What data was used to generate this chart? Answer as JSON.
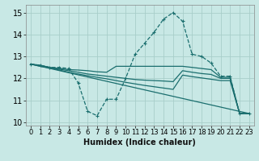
{
  "bg_color": "#c8e8e5",
  "grid_color": "#a8ceca",
  "line_color": "#1a6e6e",
  "xlabel": "Humidex (Indice chaleur)",
  "xlim": [
    -0.5,
    23.5
  ],
  "ylim": [
    9.85,
    15.35
  ],
  "yticks": [
    10,
    11,
    12,
    13,
    14,
    15
  ],
  "xticks": [
    0,
    1,
    2,
    3,
    4,
    5,
    6,
    7,
    8,
    9,
    10,
    11,
    12,
    13,
    14,
    15,
    16,
    17,
    18,
    19,
    20,
    21,
    22,
    23
  ],
  "curve_main": {
    "x": [
      0,
      1,
      2,
      3,
      4,
      5,
      6,
      7,
      8,
      9,
      10,
      11,
      12,
      13,
      14,
      15,
      16,
      17,
      18,
      19,
      20,
      21,
      22,
      23
    ],
    "y": [
      12.65,
      12.6,
      12.5,
      12.5,
      12.45,
      11.8,
      10.5,
      10.3,
      11.05,
      11.05,
      12.0,
      13.1,
      13.6,
      14.1,
      14.7,
      15.0,
      14.6,
      13.1,
      13.0,
      12.7,
      12.1,
      12.1,
      10.4,
      10.4
    ]
  },
  "curve_flat1": {
    "x": [
      0,
      1,
      2,
      3,
      4,
      5,
      6,
      7,
      8,
      9,
      10,
      11,
      12,
      13,
      14,
      15,
      16,
      17,
      18,
      19,
      20,
      21,
      22,
      23
    ],
    "y": [
      12.65,
      12.6,
      12.5,
      12.45,
      12.4,
      12.38,
      12.35,
      12.3,
      12.28,
      12.55,
      12.55,
      12.55,
      12.55,
      12.55,
      12.55,
      12.55,
      12.55,
      12.5,
      12.45,
      12.4,
      12.05,
      12.05,
      10.4,
      10.4
    ]
  },
  "curve_flat2": {
    "x": [
      0,
      1,
      2,
      3,
      4,
      5,
      6,
      7,
      8,
      9,
      10,
      11,
      12,
      13,
      14,
      15,
      16,
      17,
      18,
      19,
      20,
      21,
      22,
      23
    ],
    "y": [
      12.65,
      12.58,
      12.5,
      12.42,
      12.35,
      12.28,
      12.2,
      12.15,
      12.1,
      12.05,
      12.0,
      11.95,
      11.92,
      11.9,
      11.88,
      11.85,
      12.35,
      12.28,
      12.22,
      12.18,
      12.0,
      12.0,
      10.4,
      10.4
    ]
  },
  "curve_flat3": {
    "x": [
      0,
      1,
      2,
      3,
      4,
      5,
      6,
      7,
      8,
      9,
      10,
      11,
      12,
      13,
      14,
      15,
      16,
      17,
      18,
      19,
      20,
      21,
      22,
      23
    ],
    "y": [
      12.65,
      12.55,
      12.48,
      12.38,
      12.28,
      12.2,
      12.12,
      12.05,
      11.98,
      11.9,
      11.82,
      11.75,
      11.68,
      11.62,
      11.56,
      11.5,
      12.15,
      12.08,
      12.02,
      11.96,
      11.9,
      11.9,
      10.4,
      10.4
    ]
  },
  "curve_diag": {
    "x": [
      0,
      23
    ],
    "y": [
      12.65,
      10.4
    ]
  }
}
